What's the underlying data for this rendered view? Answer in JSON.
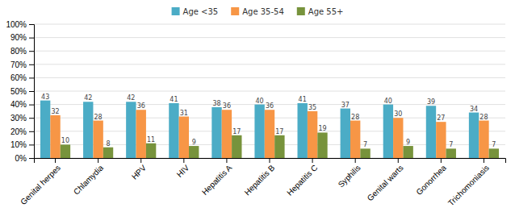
{
  "chart_data": {
    "type": "bar",
    "categories": [
      "Genital herpes",
      "Chlamydia",
      "HPV",
      "HIV",
      "Hepatitis A",
      "Hepatitis B",
      "Hepatitis C",
      "Syphilis",
      "Genital warts",
      "Gonorrhea",
      "Trichomoniasis"
    ],
    "series": [
      {
        "name": "Age <35",
        "color": "#4bacc6",
        "values": [
          43,
          42,
          42,
          41,
          38,
          40,
          41,
          37,
          40,
          39,
          34
        ]
      },
      {
        "name": "Age 35-54",
        "color": "#f79646",
        "values": [
          32,
          28,
          36,
          31,
          36,
          36,
          35,
          28,
          30,
          27,
          28
        ]
      },
      {
        "name": "Age 55+",
        "color": "#77933c",
        "values": [
          10,
          8,
          11,
          9,
          17,
          17,
          19,
          7,
          9,
          7,
          7
        ]
      }
    ],
    "ylim": [
      0,
      100
    ],
    "yticks": [
      {
        "value": 0,
        "label": "0%"
      },
      {
        "value": 10,
        "label": "10%"
      },
      {
        "value": 20,
        "label": "20%"
      },
      {
        "value": 30,
        "label": "30%"
      },
      {
        "value": 40,
        "label": "40%"
      },
      {
        "value": 50,
        "label": "50%"
      },
      {
        "value": 60,
        "label": "60%"
      },
      {
        "value": 70,
        "label": "70%"
      },
      {
        "value": 80,
        "label": "80%"
      },
      {
        "value": 90,
        "label": "90%"
      },
      {
        "value": 100,
        "label": "100%"
      }
    ],
    "grid": true,
    "data_labels": true,
    "legend": "top"
  }
}
